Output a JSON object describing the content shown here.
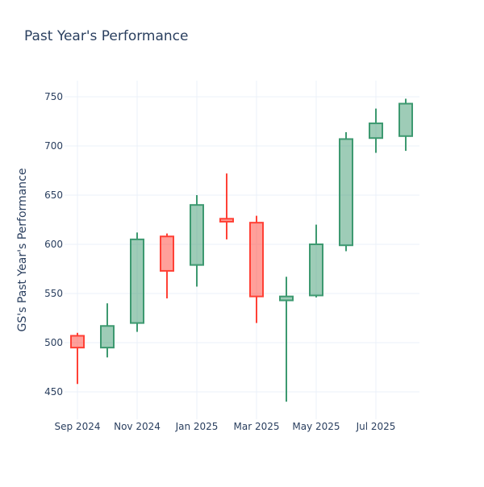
{
  "chart_data": {
    "type": "candlestick",
    "title": "Past Year's Performance",
    "xlabel": "",
    "ylabel": "GS's Past Year's Performance",
    "ylim": [
      425,
      765
    ],
    "yticks": [
      450,
      500,
      550,
      600,
      650,
      700,
      750
    ],
    "xtick_labels": [
      {
        "index": 0,
        "label": "Sep 2024"
      },
      {
        "index": 2,
        "label": "Nov 2024"
      },
      {
        "index": 4,
        "label": "Jan 2025"
      },
      {
        "index": 6,
        "label": "Mar 2025"
      },
      {
        "index": 8,
        "label": "May 2025"
      },
      {
        "index": 10,
        "label": "Jul 2025"
      }
    ],
    "grid": true,
    "colors": {
      "increasing": "#3D9970",
      "decreasing": "#FF4136"
    },
    "candles": [
      {
        "month": "2024-09",
        "open": 507,
        "high": 510,
        "low": 458,
        "close": 495
      },
      {
        "month": "2024-10",
        "open": 495,
        "high": 540,
        "low": 485,
        "close": 517
      },
      {
        "month": "2024-11",
        "open": 520,
        "high": 612,
        "low": 511,
        "close": 605
      },
      {
        "month": "2024-12",
        "open": 608,
        "high": 611,
        "low": 545,
        "close": 573
      },
      {
        "month": "2025-01",
        "open": 579,
        "high": 650,
        "low": 557,
        "close": 640
      },
      {
        "month": "2025-02",
        "open": 626,
        "high": 672,
        "low": 605,
        "close": 623
      },
      {
        "month": "2025-03",
        "open": 622,
        "high": 629,
        "low": 520,
        "close": 547
      },
      {
        "month": "2025-04",
        "open": 543,
        "high": 567,
        "low": 440,
        "close": 547
      },
      {
        "month": "2025-05",
        "open": 548,
        "high": 620,
        "low": 546,
        "close": 600
      },
      {
        "month": "2025-06",
        "open": 599,
        "high": 714,
        "low": 593,
        "close": 707
      },
      {
        "month": "2025-07",
        "open": 708,
        "high": 738,
        "low": 693,
        "close": 723
      },
      {
        "month": "2025-08",
        "open": 710,
        "high": 748,
        "low": 695,
        "close": 743
      }
    ]
  }
}
